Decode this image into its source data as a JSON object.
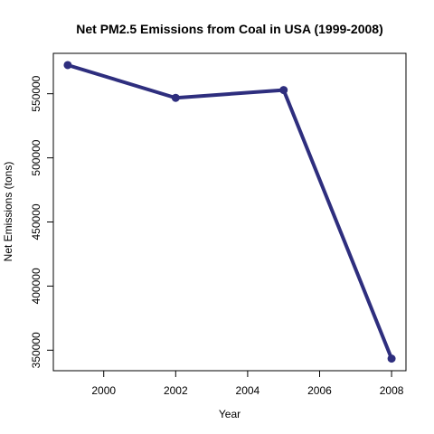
{
  "chart_data": {
    "type": "line",
    "title": "Net PM2.5 Emissions from Coal in USA (1999-2008)",
    "xlabel": "Year",
    "ylabel": "Net Emissions (tons)",
    "x": [
      1999,
      2002,
      2005,
      2008
    ],
    "series": [
      {
        "values": [
          572346,
          546789,
          552881,
          343432
        ]
      }
    ],
    "xlim": [
      1998.6,
      2008.4
    ],
    "ylim": [
      334000,
      581500
    ],
    "xticks": [
      2000,
      2002,
      2004,
      2006,
      2008
    ],
    "yticks": [
      350000,
      400000,
      450000,
      500000,
      550000
    ],
    "xtick_labels": [
      "2000",
      "2002",
      "2004",
      "2006",
      "2008"
    ],
    "ytick_labels": [
      "350000",
      "400000",
      "450000",
      "500000",
      "550000"
    ],
    "grid": false,
    "line_color": "#2e2e7e",
    "marker": "circle"
  }
}
